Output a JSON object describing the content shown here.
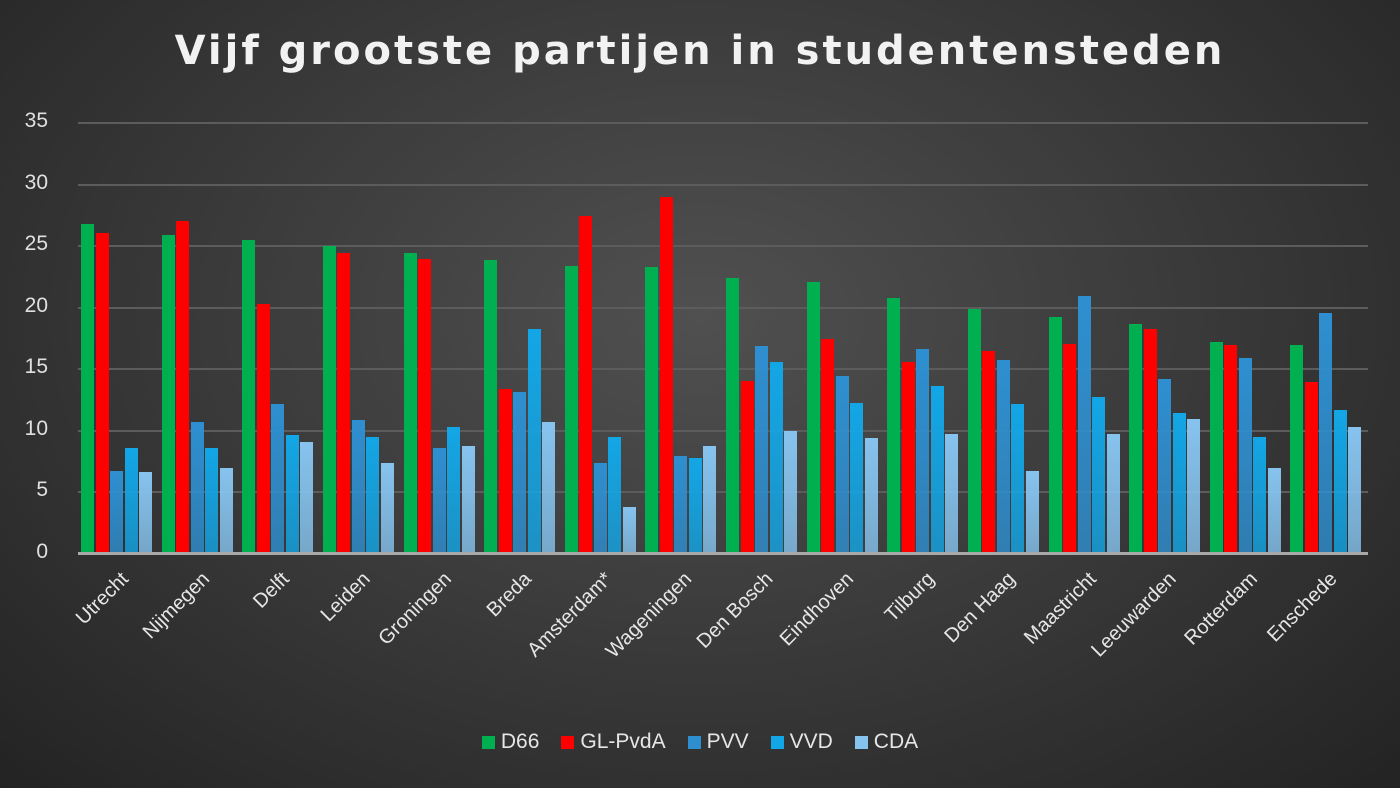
{
  "chart_data": {
    "type": "bar",
    "title": "Vijf grootste partijen in studentensteden",
    "xlabel": "",
    "ylabel": "",
    "ylim": [
      0,
      35
    ],
    "yticks": [
      0,
      5,
      10,
      15,
      20,
      25,
      30,
      35
    ],
    "grid": true,
    "legend_position": "bottom",
    "categories": [
      "Utrecht",
      "Nijmegen",
      "Delft",
      "Leiden",
      "Groningen",
      "Breda",
      "Amsterdam*",
      "Wageningen",
      "Den Bosch",
      "Eindhoven",
      "Tilburg",
      "Den Haag",
      "Maastricht",
      "Leeuwarden",
      "Rotterdam",
      "Enschede"
    ],
    "series": [
      {
        "name": "D66",
        "color": "#00b050",
        "values": [
          26.7,
          25.8,
          25.4,
          24.9,
          24.4,
          23.8,
          23.3,
          23.2,
          22.3,
          22.0,
          20.7,
          19.8,
          19.2,
          18.6,
          17.1,
          16.9
        ]
      },
      {
        "name": "GL-PvdA",
        "color": "#ff0000",
        "values": [
          26.0,
          27.0,
          20.2,
          24.4,
          23.9,
          13.3,
          27.4,
          28.9,
          14.0,
          17.4,
          15.5,
          16.4,
          17.0,
          18.2,
          16.9,
          13.9
        ]
      },
      {
        "name": "PVV",
        "color": "#2e8fd0",
        "values": [
          6.7,
          10.6,
          12.1,
          10.8,
          8.5,
          13.1,
          7.3,
          7.9,
          16.8,
          14.4,
          16.6,
          15.7,
          20.9,
          14.1,
          15.8,
          19.5
        ]
      },
      {
        "name": "VVD",
        "color": "#13a6e6",
        "values": [
          8.5,
          8.5,
          9.6,
          9.4,
          10.2,
          18.2,
          9.4,
          7.7,
          15.5,
          12.2,
          13.6,
          12.1,
          12.7,
          11.4,
          9.4,
          11.6
        ]
      },
      {
        "name": "CDA",
        "color": "#86c3ee",
        "values": [
          6.6,
          6.9,
          9.0,
          7.3,
          8.7,
          10.6,
          3.7,
          8.7,
          9.9,
          9.3,
          9.7,
          6.7,
          9.7,
          10.9,
          6.9,
          10.2
        ]
      }
    ]
  }
}
